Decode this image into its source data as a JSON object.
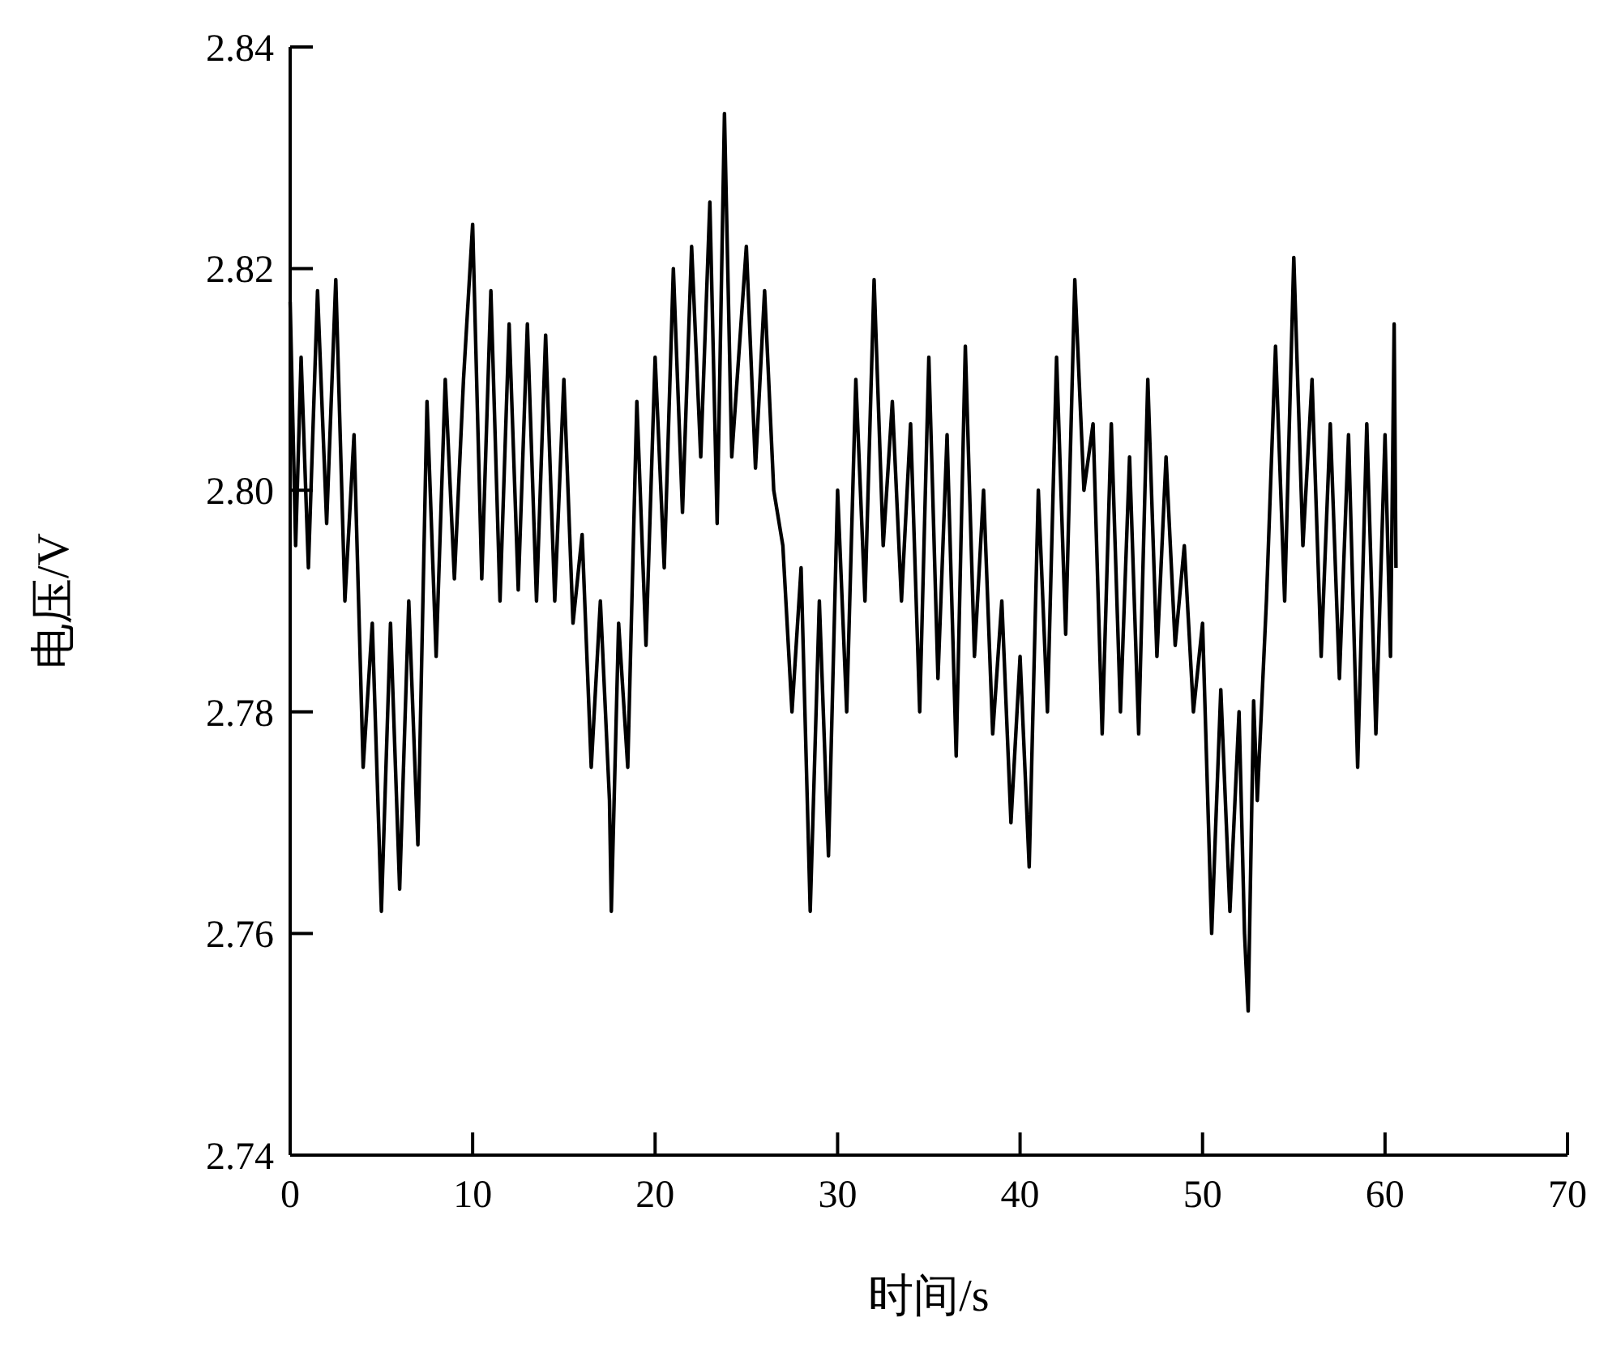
{
  "chart_data": {
    "type": "line",
    "xlabel": "时间/s",
    "ylabel": "电压/V",
    "xlim": [
      0,
      70
    ],
    "ylim": [
      2.74,
      2.84
    ],
    "xticks": [
      0,
      10,
      20,
      30,
      40,
      50,
      60,
      70
    ],
    "yticks": [
      {
        "value": 2.74,
        "label": "2.74"
      },
      {
        "value": 2.76,
        "label": "2.76"
      },
      {
        "value": 2.78,
        "label": "2.78"
      },
      {
        "value": 2.8,
        "label": "2.80"
      },
      {
        "value": 2.82,
        "label": "2.82"
      },
      {
        "value": 2.84,
        "label": "2.84"
      }
    ],
    "grid": false,
    "marker": "none",
    "line_style": "solid",
    "series": [
      {
        "color": "#000000",
        "x": [
          0,
          0.3,
          0.6,
          1,
          1.5,
          2,
          2.5,
          3,
          3.5,
          4,
          4.5,
          5,
          5.5,
          6,
          6.5,
          7,
          7.5,
          8,
          8.5,
          9,
          9.5,
          10,
          10.5,
          11,
          11.5,
          12,
          12.5,
          13,
          13.5,
          14,
          14.5,
          15,
          15.5,
          16,
          16.5,
          17,
          17.5,
          17.6,
          18,
          18.5,
          19,
          19.5,
          20,
          20.5,
          21,
          21.5,
          22,
          22.5,
          23,
          23.4,
          23.8,
          24.2,
          25,
          25.5,
          26,
          26.5,
          27,
          27.5,
          28,
          28.5,
          29,
          29.5,
          30,
          30.5,
          31,
          31.5,
          32,
          32.5,
          33,
          33.5,
          34,
          34.5,
          35,
          35.5,
          36,
          36.5,
          37,
          37.5,
          38,
          38.5,
          39,
          39.5,
          40,
          40.5,
          41,
          41.5,
          42,
          42.5,
          43,
          43.5,
          44,
          44.5,
          45,
          45.5,
          46,
          46.5,
          47,
          47.5,
          48,
          48.5,
          49,
          49.5,
          50,
          50.5,
          51,
          51.5,
          52,
          52.3,
          52.5,
          52.8,
          53,
          53.5,
          54,
          54.5,
          55,
          55.5,
          56,
          56.5,
          57,
          57.5,
          58,
          58.5,
          59,
          59.5,
          60,
          60.3,
          60.5,
          60.6
        ],
        "values": [
          2.817,
          2.795,
          2.812,
          2.793,
          2.818,
          2.797,
          2.819,
          2.79,
          2.805,
          2.775,
          2.788,
          2.762,
          2.788,
          2.764,
          2.79,
          2.768,
          2.808,
          2.785,
          2.81,
          2.792,
          2.81,
          2.824,
          2.792,
          2.818,
          2.79,
          2.815,
          2.791,
          2.815,
          2.79,
          2.814,
          2.79,
          2.81,
          2.788,
          2.796,
          2.775,
          2.79,
          2.772,
          2.762,
          2.788,
          2.775,
          2.808,
          2.786,
          2.812,
          2.793,
          2.82,
          2.798,
          2.822,
          2.803,
          2.826,
          2.797,
          2.834,
          2.803,
          2.822,
          2.802,
          2.818,
          2.8,
          2.795,
          2.78,
          2.793,
          2.762,
          2.79,
          2.767,
          2.8,
          2.78,
          2.81,
          2.79,
          2.819,
          2.795,
          2.808,
          2.79,
          2.806,
          2.78,
          2.812,
          2.783,
          2.805,
          2.776,
          2.813,
          2.785,
          2.8,
          2.778,
          2.79,
          2.77,
          2.785,
          2.766,
          2.8,
          2.78,
          2.812,
          2.787,
          2.819,
          2.8,
          2.806,
          2.778,
          2.806,
          2.78,
          2.803,
          2.778,
          2.81,
          2.785,
          2.803,
          2.786,
          2.795,
          2.78,
          2.788,
          2.76,
          2.782,
          2.762,
          2.78,
          2.76,
          2.753,
          2.781,
          2.772,
          2.79,
          2.813,
          2.79,
          2.821,
          2.795,
          2.81,
          2.785,
          2.806,
          2.783,
          2.805,
          2.775,
          2.806,
          2.778,
          2.805,
          2.785,
          2.815,
          2.793
        ]
      }
    ]
  }
}
